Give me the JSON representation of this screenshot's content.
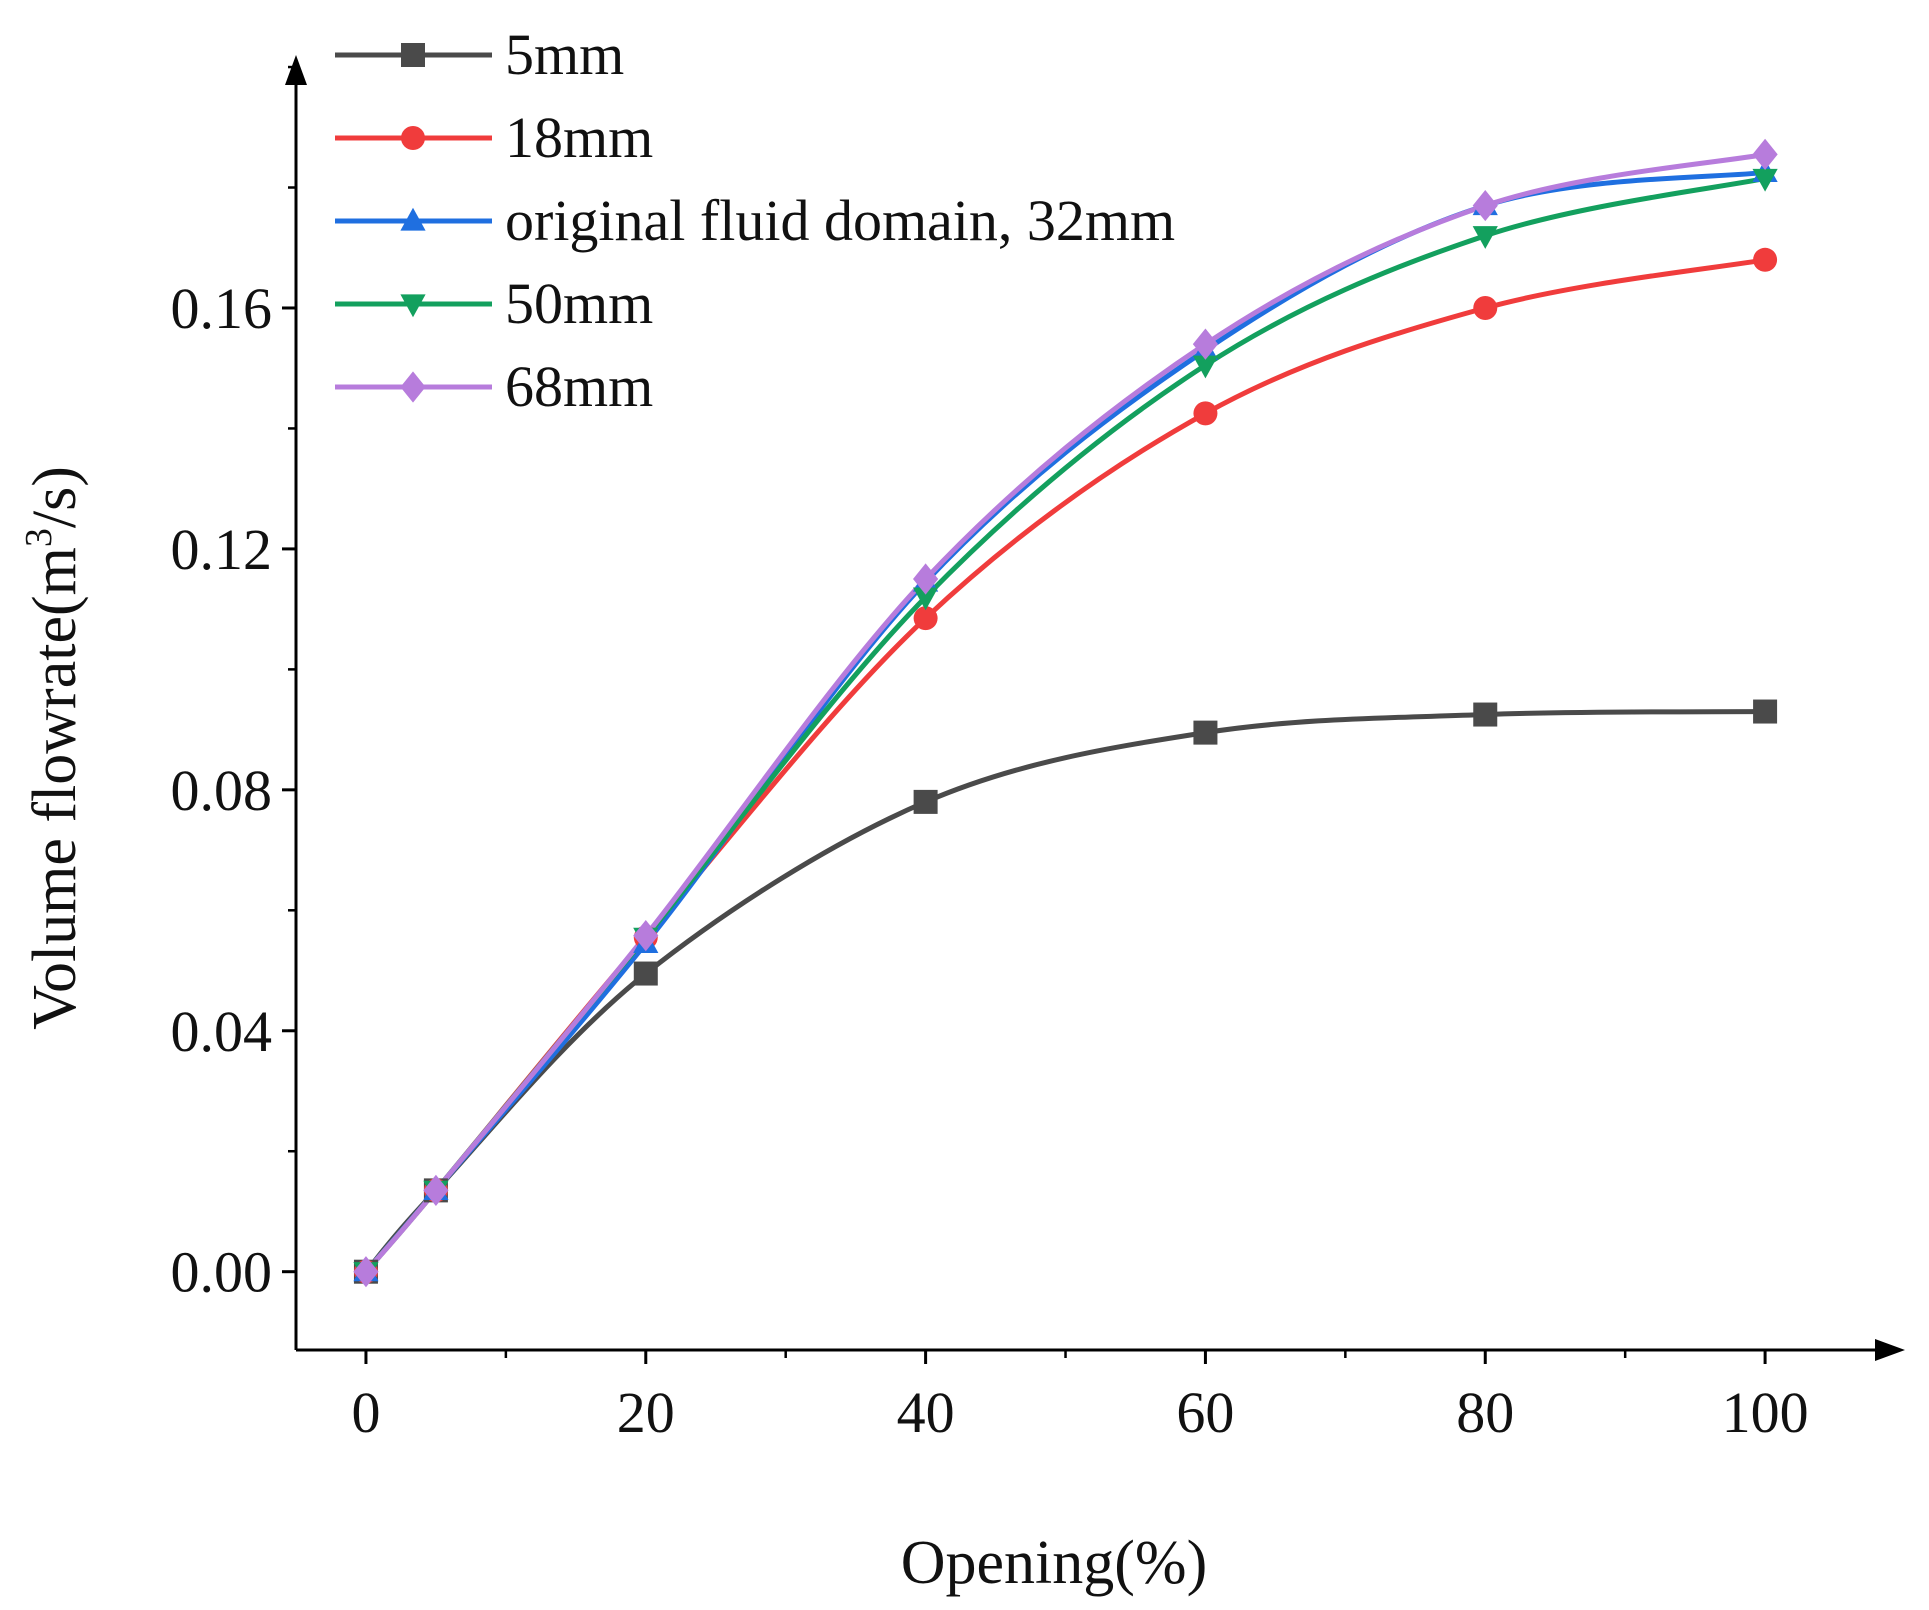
{
  "chart_data": {
    "type": "line",
    "title": "",
    "xlabel": "Opening(%)",
    "ylabel_main": "Volume flowrate(m",
    "ylabel_sup": "3",
    "ylabel_tail": "/s)",
    "xlim": [
      -5,
      110
    ],
    "ylim": [
      -0.013,
      0.202
    ],
    "xticks": [
      0,
      20,
      40,
      60,
      80,
      100
    ],
    "xtick_labels": [
      "0",
      "20",
      "40",
      "60",
      "80",
      "100"
    ],
    "yticks": [
      0.0,
      0.04,
      0.08,
      0.12,
      0.16
    ],
    "ytick_labels": [
      "0.00",
      "0.04",
      "0.08",
      "0.12",
      "0.16"
    ],
    "grid": false,
    "legend_position": "top-left",
    "x": [
      0,
      5,
      20,
      40,
      60,
      80,
      100
    ],
    "series": [
      {
        "name": "5mm",
        "color": "#4a4a4a",
        "marker": "square",
        "values": [
          0.0,
          0.0135,
          0.0495,
          0.078,
          0.0895,
          0.0925,
          0.093
        ]
      },
      {
        "name": "18mm",
        "color": "#f03c3c",
        "marker": "circle",
        "values": [
          0.0,
          0.0135,
          0.0555,
          0.1085,
          0.1425,
          0.16,
          0.168
        ]
      },
      {
        "name": "original fluid domain, 32mm",
        "color": "#1f6fe0",
        "marker": "triangle-up",
        "values": [
          0.0,
          0.0135,
          0.0545,
          0.1145,
          0.153,
          0.177,
          0.1825
        ]
      },
      {
        "name": "50mm",
        "color": "#13a05e",
        "marker": "triangle-down",
        "values": [
          0.0,
          0.0135,
          0.0555,
          0.112,
          0.1505,
          0.172,
          0.1815
        ]
      },
      {
        "name": "68mm",
        "color": "#b77cdc",
        "marker": "diamond",
        "values": [
          0.0,
          0.0135,
          0.0558,
          0.115,
          0.154,
          0.177,
          0.1855
        ]
      }
    ]
  }
}
